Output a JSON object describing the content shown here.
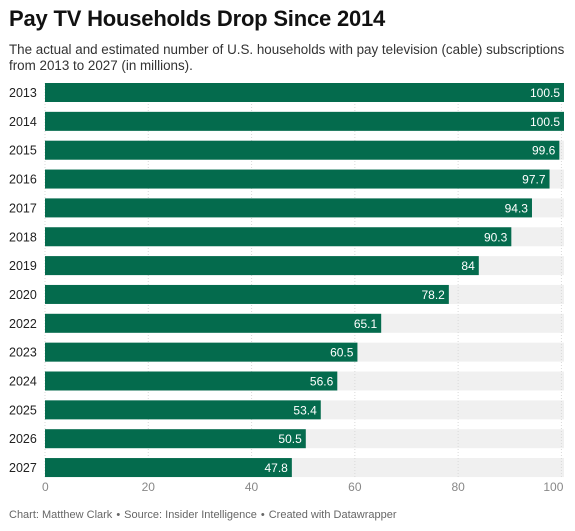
{
  "title": "Pay TV Households Drop Since 2014",
  "subtitle": "The actual and estimated number of U.S. households with pay television (cable) subscriptions from 2013 to 2027 (in millions).",
  "footer": {
    "author": "Chart: Matthew Clark",
    "source": "Source: Insider Intelligence",
    "tool": "Created with Datawrapper",
    "separator": "•"
  },
  "colors": {
    "bar": "#046b4d",
    "track": "#f0f0f0",
    "value_label": "#ffffff",
    "category_label": "#222222",
    "tick_label": "#888888"
  },
  "chart_data": {
    "type": "bar",
    "orientation": "horizontal",
    "categories": [
      "2013",
      "2014",
      "2015",
      "2016",
      "2017",
      "2018",
      "2019",
      "2020",
      "2022",
      "2023",
      "2024",
      "2025",
      "2026",
      "2027"
    ],
    "values": [
      100.5,
      100.5,
      99.6,
      97.7,
      94.3,
      90.3,
      84,
      78.2,
      65.1,
      60.5,
      56.6,
      53.4,
      50.5,
      47.8
    ],
    "value_labels": [
      "100.5",
      "100.5",
      "99.6",
      "97.7",
      "94.3",
      "90.3",
      "84",
      "78.2",
      "65.1",
      "60.5",
      "56.6",
      "53.4",
      "50.5",
      "47.8"
    ],
    "xticks": [
      "0",
      "20",
      "40",
      "60",
      "80",
      "100"
    ],
    "xtick_values": [
      0,
      20,
      40,
      60,
      80,
      100
    ],
    "xlim": [
      0,
      100.5
    ],
    "grid": true,
    "legend": "none"
  }
}
